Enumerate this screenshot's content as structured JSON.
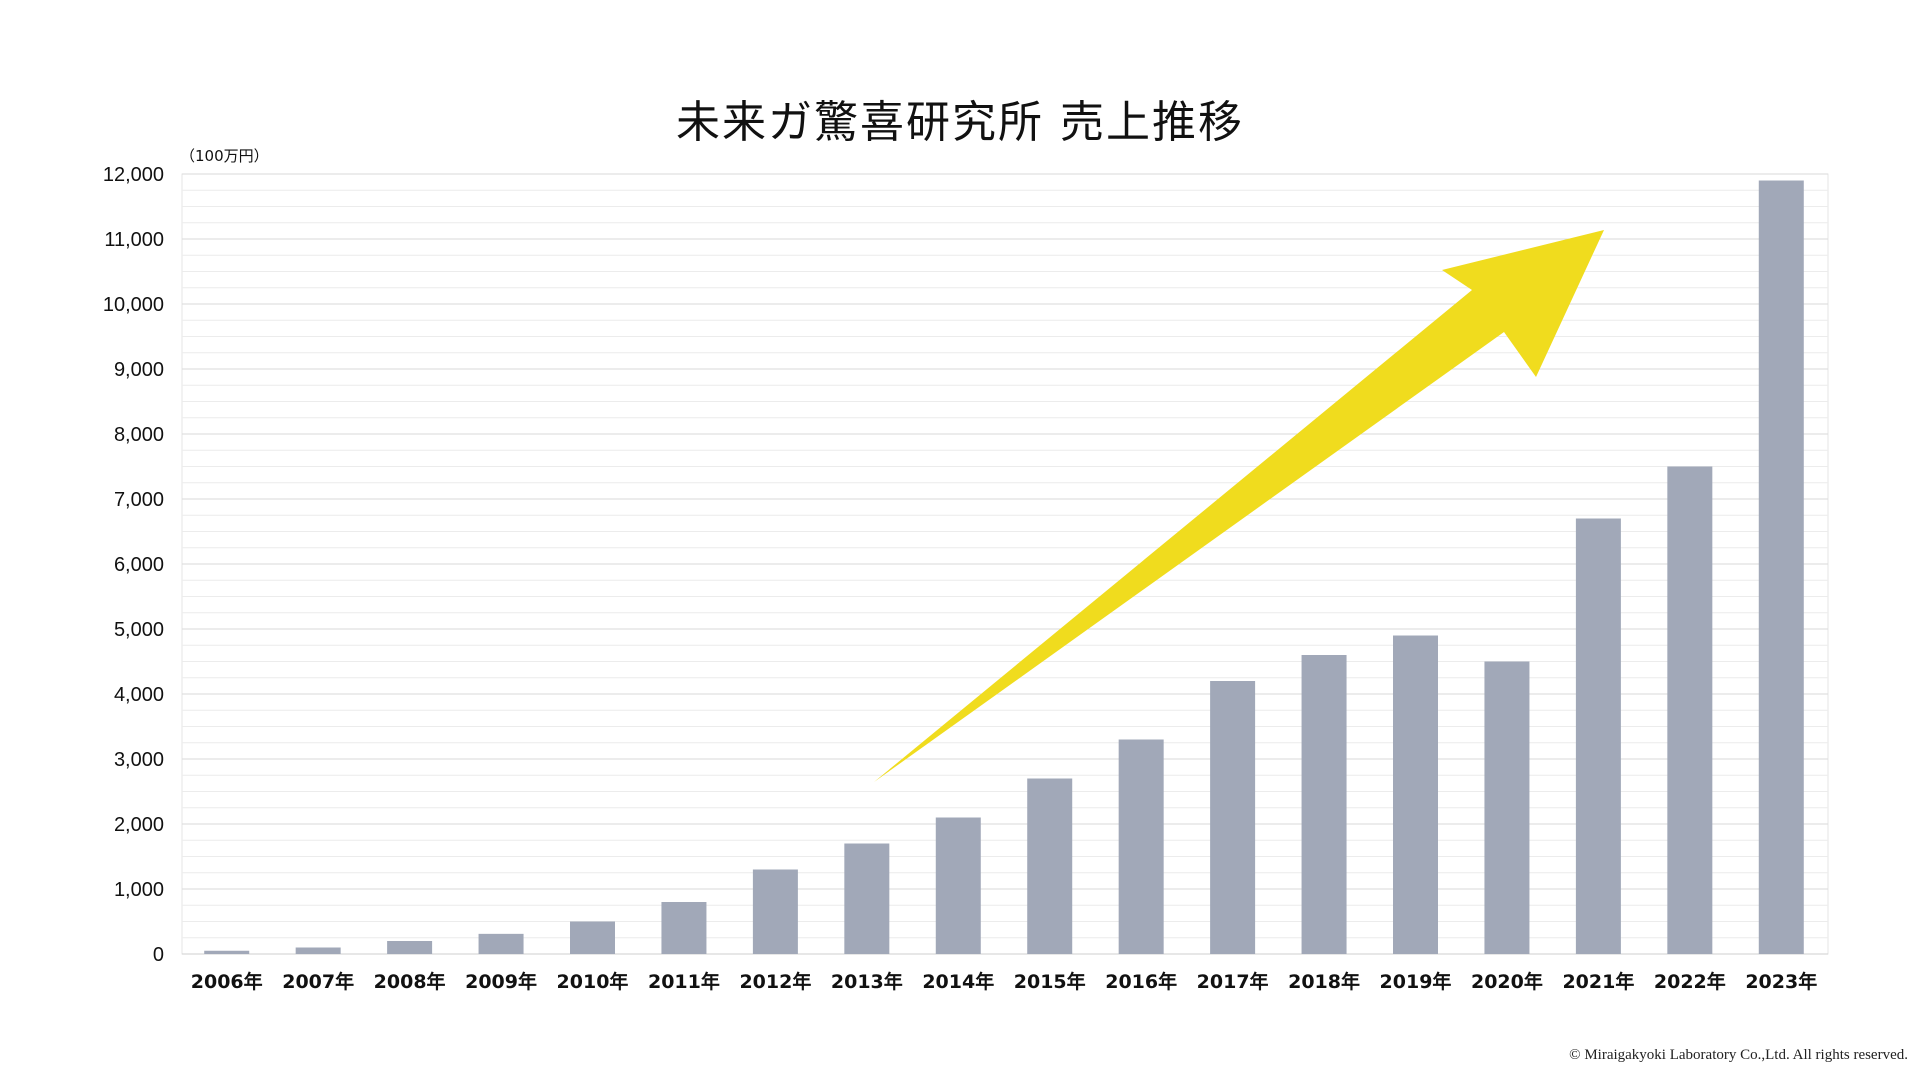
{
  "chart_data": {
    "type": "bar",
    "title": "未来ガ驚喜研究所 売上推移",
    "unit_label": "（100万円）",
    "categories": [
      "2006年",
      "2007年",
      "2008年",
      "2009年",
      "2010年",
      "2011年",
      "2012年",
      "2013年",
      "2014年",
      "2015年",
      "2016年",
      "2017年",
      "2018年",
      "2019年",
      "2020年",
      "2021年",
      "2022年",
      "2023年"
    ],
    "values": [
      50,
      100,
      200,
      310,
      500,
      800,
      1300,
      1700,
      2100,
      2700,
      3300,
      4200,
      4600,
      4900,
      4500,
      6700,
      7500,
      11900
    ],
    "y_ticks": [
      "0",
      "1,000",
      "2,000",
      "3,000",
      "4,000",
      "5,000",
      "6,000",
      "7,000",
      "8,000",
      "9,000",
      "10,000",
      "11,000",
      "12,000"
    ],
    "ylim": [
      0,
      12000
    ],
    "grid": true,
    "legend": "none",
    "annotation": "yellow upward trend arrow",
    "colors": {
      "bar": "#a1a8b8",
      "arrow": "#f0dc1e",
      "grid": "#e6e6e6"
    }
  },
  "footer": {
    "copyright": "© Miraigakyoki Laboratory Co.,Ltd. All rights reserved."
  }
}
